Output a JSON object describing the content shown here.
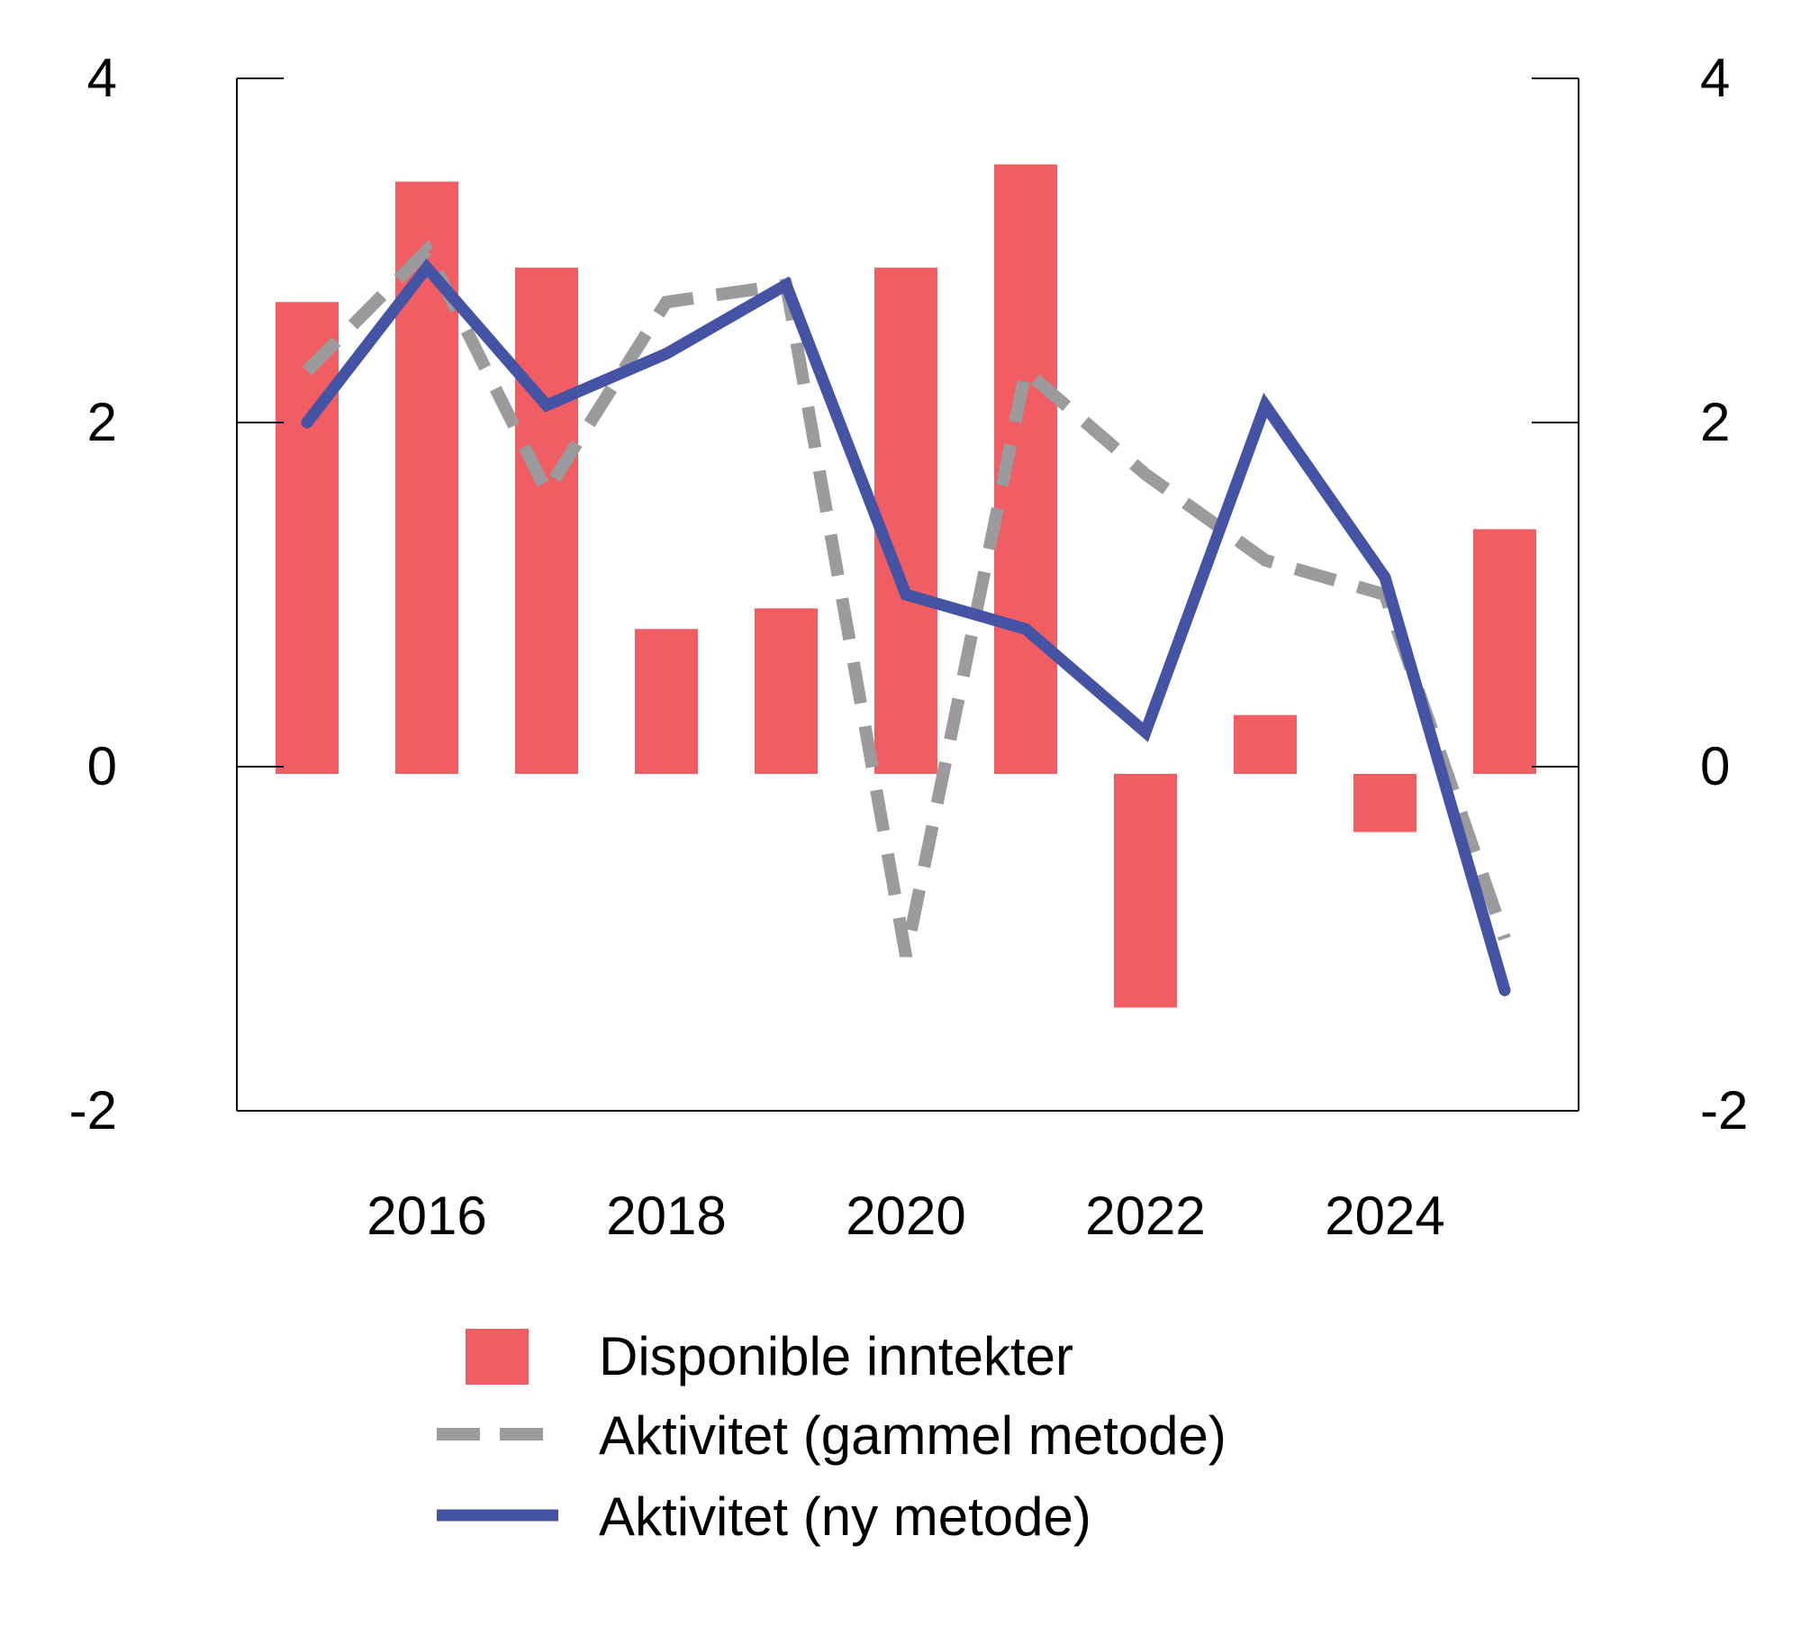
{
  "chart_data": {
    "type": "bar",
    "title": "",
    "xlabel": "",
    "ylabel": "",
    "x": [
      2015,
      2016,
      2017,
      2018,
      2019,
      2020,
      2021,
      2022,
      2023,
      2024,
      2025
    ],
    "x_tick_labels": [
      "2016",
      "2018",
      "2020",
      "2022",
      "2024"
    ],
    "x_tick_values": [
      2016,
      2018,
      2020,
      2022,
      2024
    ],
    "ylim": [
      -2,
      4
    ],
    "y_ticks": [
      4,
      2,
      0,
      -2
    ],
    "y_tick_labels": [
      "4",
      "2",
      "0",
      "-2"
    ],
    "right_y_tick_labels": [
      "4",
      "2",
      "0",
      "-2"
    ],
    "grid": false,
    "legend_position": "bottom",
    "series": [
      {
        "name": "Disponible inntekter",
        "type": "bar",
        "color": "#f05d63",
        "values": [
          2.7,
          3.4,
          2.9,
          0.8,
          0.92,
          2.9,
          3.5,
          -1.4,
          0.3,
          -0.38,
          1.38
        ]
      },
      {
        "name": "Aktivitet (gammel metode)",
        "type": "line",
        "style": "dashed",
        "color": "#9b9a9c",
        "values": [
          2.3,
          3.0,
          1.6,
          2.7,
          2.8,
          -1.1,
          2.3,
          1.7,
          1.2,
          1.0,
          -1.0
        ]
      },
      {
        "name": "Aktivitet (ny metode)",
        "type": "line",
        "style": "solid",
        "color": "#4453a3",
        "values": [
          2.0,
          2.9,
          2.1,
          2.4,
          2.8,
          1.0,
          0.8,
          0.2,
          2.1,
          1.1,
          -1.3
        ]
      }
    ]
  }
}
